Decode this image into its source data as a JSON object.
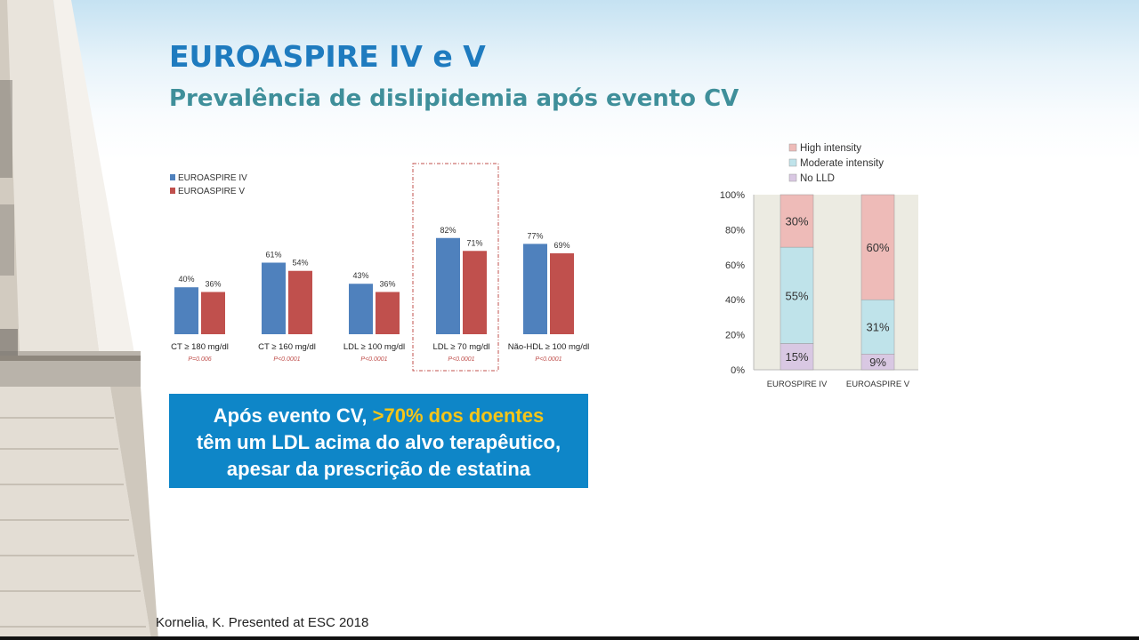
{
  "slide": {
    "title": "EUROASPIRE IV e V",
    "subtitle": "Prevalência de dislipidemia após evento CV",
    "callout": {
      "line1_plain": "Após evento CV, ",
      "line1_highlight": ">70% dos doentes",
      "line2": "têm um LDL acima do alvo terapêutico,",
      "line3": "apesar da prescrição de estatina"
    },
    "citation": "Kornelia, K. Presented at ESC 2018"
  },
  "colors": {
    "title": "#1e7bbf",
    "subtitle": "#3f8f9a",
    "euroaspire_iv": "#4f81bd",
    "euroaspire_v": "#c0504d",
    "callout_bg": "#0e86c8",
    "callout_highlight": "#f5c518",
    "high_intensity": "#eebbb8",
    "moderate_intensity": "#bfe3ea",
    "no_lld": "#d9c8e3"
  },
  "chart_data": [
    {
      "type": "bar",
      "categories": [
        "CT ≥ 180 mg/dl",
        "CT ≥ 160 mg/dl",
        "LDL ≥ 100 mg/dl",
        "LDL ≥ 70 mg/dl",
        "Não-HDL ≥ 100 mg/dl"
      ],
      "p_values": [
        "P=0.006",
        "P<0.0001",
        "P<0.0001",
        "P<0.0001",
        "P<0.0001"
      ],
      "series": [
        {
          "name": "EUROASPIRE IV",
          "values": [
            40,
            61,
            43,
            82,
            77
          ],
          "labels": [
            "40%",
            "61%",
            "43%",
            "82%",
            "77%"
          ]
        },
        {
          "name": "EUROASPIRE V",
          "values": [
            36,
            54,
            36,
            71,
            69
          ],
          "labels": [
            "36%",
            "54%",
            "36%",
            "71%",
            "69%"
          ]
        }
      ],
      "highlighted_category": "LDL ≥ 70 mg/dl",
      "ylim": [
        0,
        100
      ],
      "legend": "top-left"
    },
    {
      "type": "bar",
      "stacked": true,
      "categories": [
        "EUROSPIRE IV",
        "EUROASPIRE V"
      ],
      "series": [
        {
          "name": "No LLD",
          "values": [
            15,
            9
          ],
          "labels": [
            "15%",
            "9%"
          ]
        },
        {
          "name": "Moderate intensity",
          "values": [
            55,
            31
          ],
          "labels": [
            "55%",
            "31%"
          ]
        },
        {
          "name": "High intensity",
          "values": [
            30,
            60
          ],
          "labels": [
            "30%",
            "60%"
          ]
        }
      ],
      "legend_order": [
        "High intensity",
        "Moderate intensity",
        "No LLD"
      ],
      "yticks": [
        "0%",
        "20%",
        "40%",
        "60%",
        "80%",
        "100%"
      ],
      "ylim": [
        0,
        100
      ],
      "legend": "top"
    }
  ]
}
